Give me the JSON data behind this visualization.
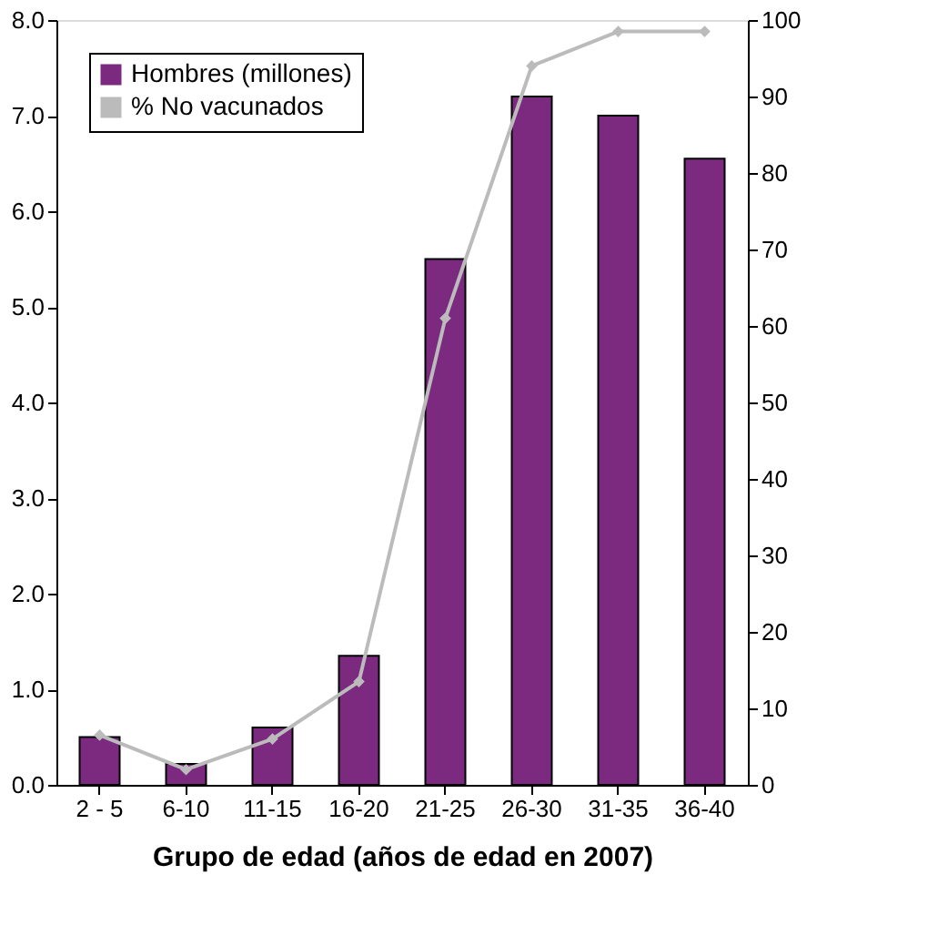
{
  "chart_data": {
    "type": "bar",
    "xlabel": "Grupo de edad  (años de edad en 2007)",
    "categories": [
      "2 - 5",
      "6-10",
      "11-15",
      "16-20",
      "21-25",
      "26-30",
      "31-35",
      "36-40"
    ],
    "series": [
      {
        "name": "Hombres (millones)",
        "color": "#7b2a80",
        "values": [
          0.5,
          0.22,
          0.6,
          1.35,
          5.5,
          7.2,
          7.0,
          6.55
        ]
      },
      {
        "name": "% No vacunados",
        "type": "line",
        "axis": "y2",
        "color": "#bbbbbb",
        "marker": "diamond",
        "values": [
          6.5,
          2,
          6,
          13.5,
          61,
          94,
          98.5,
          98.5
        ]
      }
    ],
    "ylim": [
      0,
      8
    ],
    "yticks": [
      {
        "value": 0,
        "label": "0.0"
      },
      {
        "value": 1,
        "label": "1.0"
      },
      {
        "value": 2,
        "label": "2.0"
      },
      {
        "value": 3,
        "label": "3.0"
      },
      {
        "value": 4,
        "label": "4.0"
      },
      {
        "value": 5,
        "label": "5.0"
      },
      {
        "value": 6,
        "label": "6.0"
      },
      {
        "value": 7,
        "label": "7.0"
      },
      {
        "value": 8,
        "label": "8.0"
      }
    ],
    "y2lim": [
      0,
      100
    ],
    "y2ticks": [
      0,
      10,
      20,
      30,
      40,
      50,
      60,
      70,
      80,
      90,
      100
    ],
    "grid": false,
    "legend": "top left"
  }
}
